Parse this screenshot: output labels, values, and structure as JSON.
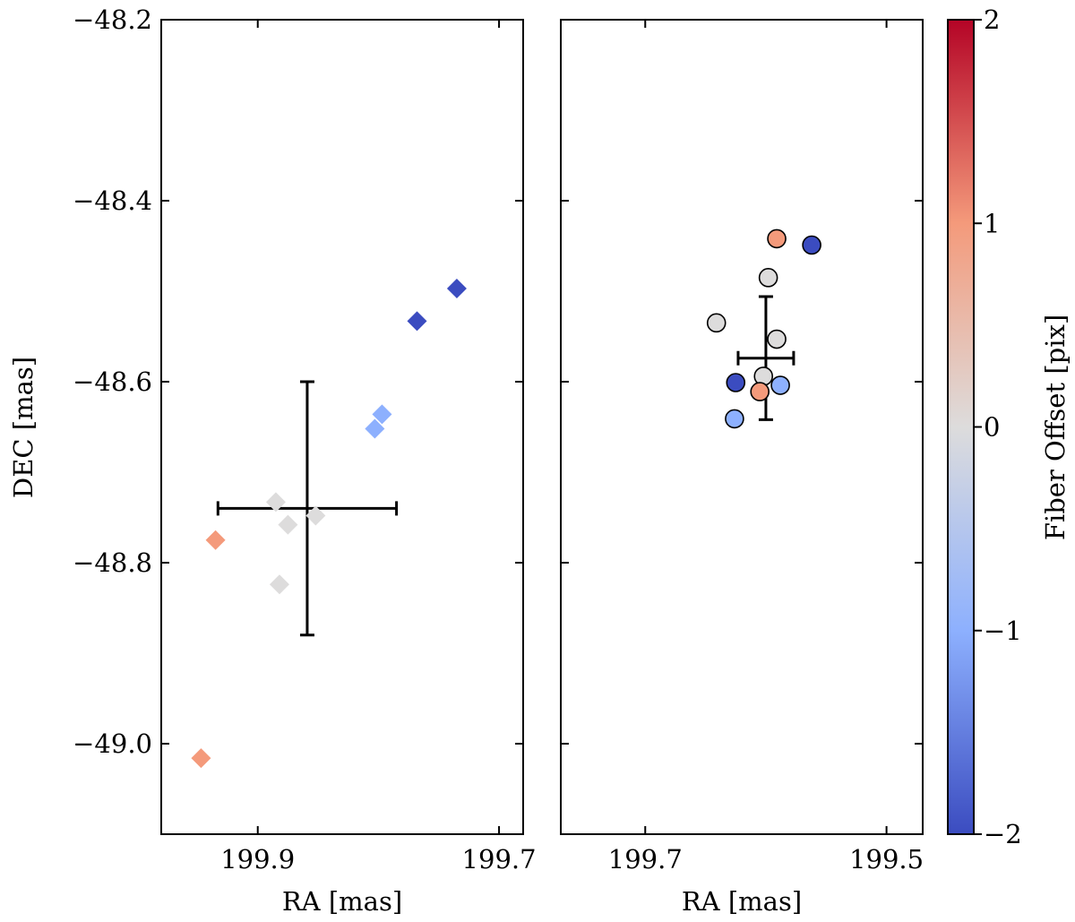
{
  "chart_data": [
    {
      "type": "scatter",
      "panel": "left",
      "marker": "diamond",
      "title": "",
      "xlabel": "RA [mas]",
      "ylabel": "DEC [mas]",
      "xlim": [
        199.98,
        199.68
      ],
      "ylim": [
        -49.1,
        -48.2
      ],
      "xticks": [
        199.9,
        199.7
      ],
      "xtick_labels": [
        "199.9",
        "199.7"
      ],
      "yticks": [
        -48.2,
        -48.4,
        -48.6,
        -48.8,
        -49.0
      ],
      "ytick_labels": [
        "−48.2",
        "−48.4",
        "−48.6",
        "−48.8",
        "−49.0"
      ],
      "points": [
        {
          "x": 199.735,
          "y": -48.497,
          "c": -2
        },
        {
          "x": 199.768,
          "y": -48.533,
          "c": -2
        },
        {
          "x": 199.797,
          "y": -48.636,
          "c": -1
        },
        {
          "x": 199.803,
          "y": -48.652,
          "c": -1
        },
        {
          "x": 199.885,
          "y": -48.733,
          "c": 0
        },
        {
          "x": 199.875,
          "y": -48.758,
          "c": 0
        },
        {
          "x": 199.852,
          "y": -48.748,
          "c": 0
        },
        {
          "x": 199.882,
          "y": -48.824,
          "c": 0
        },
        {
          "x": 199.935,
          "y": -48.775,
          "c": 1
        },
        {
          "x": 199.947,
          "y": -49.016,
          "c": 1
        }
      ],
      "errorbar": {
        "x": 199.859,
        "y": -48.74,
        "xerr": 0.074,
        "yerr": 0.14
      }
    },
    {
      "type": "scatter",
      "panel": "right",
      "marker": "circle",
      "title": "",
      "xlabel": "RA [mas]",
      "ylabel": "",
      "xlim": [
        199.77,
        199.47
      ],
      "ylim": [
        -49.1,
        -48.2
      ],
      "xticks": [
        199.7,
        199.5
      ],
      "xtick_labels": [
        "199.7",
        "199.5"
      ],
      "points": [
        {
          "x": 199.562,
          "y": -48.449,
          "c": -2
        },
        {
          "x": 199.591,
          "y": -48.442,
          "c": 1
        },
        {
          "x": 199.598,
          "y": -48.485,
          "c": 0
        },
        {
          "x": 199.641,
          "y": -48.535,
          "c": 0
        },
        {
          "x": 199.591,
          "y": -48.553,
          "c": 0
        },
        {
          "x": 199.602,
          "y": -48.594,
          "c": 0
        },
        {
          "x": 199.625,
          "y": -48.601,
          "c": -2
        },
        {
          "x": 199.588,
          "y": -48.604,
          "c": -1
        },
        {
          "x": 199.605,
          "y": -48.611,
          "c": 1
        },
        {
          "x": 199.626,
          "y": -48.641,
          "c": -1
        }
      ],
      "errorbar": {
        "x": 199.6,
        "y": -48.574,
        "xerr": 0.023,
        "yerr": 0.068
      }
    }
  ],
  "colorbar": {
    "label": "Fiber Offset [pix]",
    "range": [
      -2,
      2
    ],
    "ticks": [
      2,
      1,
      0,
      -1,
      -2
    ],
    "tick_labels": [
      "2",
      "1",
      "0",
      "−1",
      "−2"
    ],
    "colors": {
      "low": "#3b4cc0",
      "mid_low": "#8db0fe",
      "mid": "#dddcdc",
      "mid_high": "#f49a7b",
      "high": "#b40426"
    }
  }
}
